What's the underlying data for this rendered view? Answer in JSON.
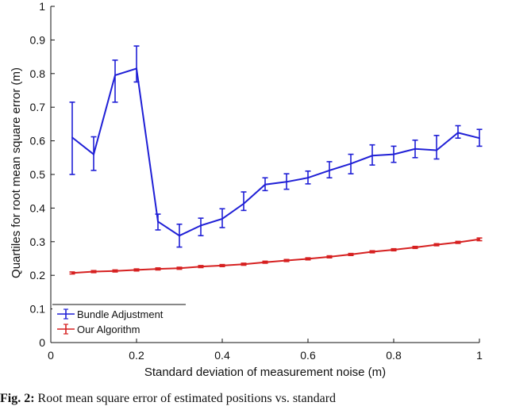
{
  "chart_data": {
    "type": "line",
    "xlabel": "Standard deviation of measurement noise (m)",
    "ylabel": "Quartiles for root mean square error (m)",
    "xlim": [
      0,
      1
    ],
    "ylim": [
      0,
      1
    ],
    "xticks": [
      "0",
      "0.2",
      "0.4",
      "0.6",
      "0.8",
      "1"
    ],
    "yticks": [
      "0",
      "0.1",
      "0.2",
      "0.3",
      "0.4",
      "0.5",
      "0.6",
      "0.7",
      "0.8",
      "0.9",
      "1"
    ],
    "x": [
      0.05,
      0.1,
      0.15,
      0.2,
      0.25,
      0.3,
      0.35,
      0.4,
      0.45,
      0.5,
      0.55,
      0.6,
      0.65,
      0.7,
      0.75,
      0.8,
      0.85,
      0.9,
      0.95,
      1.0
    ],
    "legend_position": "bottom-left",
    "grid": false,
    "series": [
      {
        "name": "Bundle Adjustment",
        "color": "#1f1fd6",
        "values": [
          0.61,
          0.56,
          0.795,
          0.815,
          0.36,
          0.318,
          0.348,
          0.368,
          0.413,
          0.47,
          0.478,
          0.49,
          0.512,
          0.532,
          0.556,
          0.56,
          0.576,
          0.572,
          0.624,
          0.608
        ],
        "lower": [
          0.5,
          0.512,
          0.715,
          0.775,
          0.335,
          0.284,
          0.318,
          0.342,
          0.393,
          0.452,
          0.456,
          0.472,
          0.49,
          0.502,
          0.528,
          0.536,
          0.55,
          0.546,
          0.608,
          0.584
        ],
        "upper": [
          0.715,
          0.612,
          0.84,
          0.882,
          0.382,
          0.352,
          0.37,
          0.398,
          0.448,
          0.49,
          0.502,
          0.51,
          0.538,
          0.56,
          0.588,
          0.584,
          0.602,
          0.616,
          0.645,
          0.634
        ]
      },
      {
        "name": "Our Algorithm",
        "color": "#d62020",
        "values": [
          0.207,
          0.211,
          0.213,
          0.216,
          0.219,
          0.221,
          0.226,
          0.229,
          0.233,
          0.239,
          0.244,
          0.249,
          0.255,
          0.262,
          0.27,
          0.276,
          0.283,
          0.291,
          0.298,
          0.307
        ],
        "lower": [
          0.204,
          0.208,
          0.21,
          0.213,
          0.216,
          0.218,
          0.223,
          0.226,
          0.23,
          0.236,
          0.241,
          0.246,
          0.252,
          0.259,
          0.267,
          0.273,
          0.28,
          0.288,
          0.295,
          0.303
        ],
        "upper": [
          0.21,
          0.214,
          0.216,
          0.219,
          0.222,
          0.224,
          0.229,
          0.232,
          0.236,
          0.242,
          0.247,
          0.252,
          0.258,
          0.265,
          0.273,
          0.279,
          0.286,
          0.294,
          0.301,
          0.311
        ]
      }
    ]
  },
  "caption": {
    "lead": "Fig. 2:",
    "text": " Root mean square error of estimated positions vs. standard"
  }
}
